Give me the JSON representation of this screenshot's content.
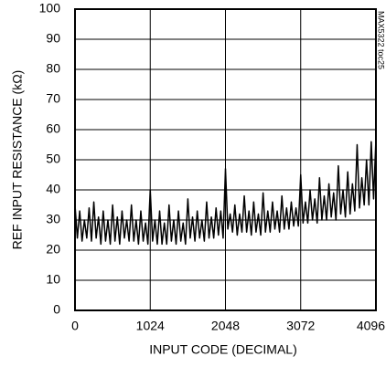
{
  "chart_data": {
    "type": "line",
    "xlabel": "INPUT CODE (DECIMAL)",
    "ylabel": "REF INPUT RESISTANCE (kΩ)",
    "annotation": "MAX5322 toc25",
    "xlim": [
      0,
      4096
    ],
    "xticks": [
      0,
      1024,
      2048,
      3072,
      4096
    ],
    "ylim": [
      0,
      100
    ],
    "yticks": [
      0,
      10,
      20,
      30,
      40,
      50,
      60,
      70,
      80,
      90,
      100
    ],
    "grid": true,
    "x": [
      0,
      32,
      64,
      96,
      128,
      160,
      192,
      224,
      256,
      288,
      320,
      352,
      384,
      416,
      448,
      480,
      512,
      544,
      576,
      608,
      640,
      672,
      704,
      736,
      768,
      800,
      832,
      864,
      896,
      928,
      960,
      992,
      1024,
      1056,
      1088,
      1120,
      1152,
      1184,
      1216,
      1248,
      1280,
      1312,
      1344,
      1376,
      1408,
      1440,
      1472,
      1504,
      1536,
      1568,
      1600,
      1632,
      1664,
      1696,
      1728,
      1760,
      1792,
      1824,
      1856,
      1888,
      1920,
      1952,
      1984,
      2016,
      2048,
      2080,
      2112,
      2144,
      2176,
      2208,
      2240,
      2272,
      2304,
      2336,
      2368,
      2400,
      2432,
      2464,
      2496,
      2528,
      2560,
      2592,
      2624,
      2656,
      2688,
      2720,
      2752,
      2784,
      2816,
      2848,
      2880,
      2912,
      2944,
      2976,
      3008,
      3040,
      3072,
      3104,
      3136,
      3168,
      3200,
      3232,
      3264,
      3296,
      3328,
      3360,
      3392,
      3424,
      3456,
      3488,
      3520,
      3552,
      3584,
      3616,
      3648,
      3680,
      3712,
      3744,
      3776,
      3808,
      3840,
      3872,
      3904,
      3936,
      3968,
      4000,
      4032,
      4064,
      4096
    ],
    "series": [
      {
        "color": "#000000",
        "values": [
          35,
          24,
          33,
          23,
          30,
          24,
          34,
          23,
          36,
          24,
          31,
          22,
          33,
          23,
          30,
          22,
          35,
          23,
          31,
          22,
          33,
          24,
          30,
          23,
          35,
          23,
          30,
          22,
          33,
          23,
          29,
          22,
          40,
          23,
          30,
          22,
          33,
          22,
          29,
          22,
          35,
          23,
          30,
          22,
          33,
          23,
          29,
          22,
          37,
          24,
          31,
          23,
          33,
          24,
          30,
          23,
          36,
          24,
          31,
          24,
          34,
          25,
          33,
          24,
          47,
          27,
          32,
          26,
          35,
          25,
          32,
          26,
          38,
          26,
          33,
          25,
          36,
          26,
          32,
          25,
          39,
          26,
          33,
          26,
          36,
          27,
          33,
          26,
          38,
          27,
          34,
          27,
          36,
          28,
          34,
          28,
          45,
          29,
          36,
          29,
          40,
          30,
          37,
          29,
          44,
          30,
          38,
          30,
          42,
          31,
          39,
          30,
          48,
          32,
          40,
          31,
          46,
          32,
          42,
          33,
          55,
          34,
          44,
          35,
          50,
          35,
          56,
          37,
          57
        ]
      }
    ]
  }
}
